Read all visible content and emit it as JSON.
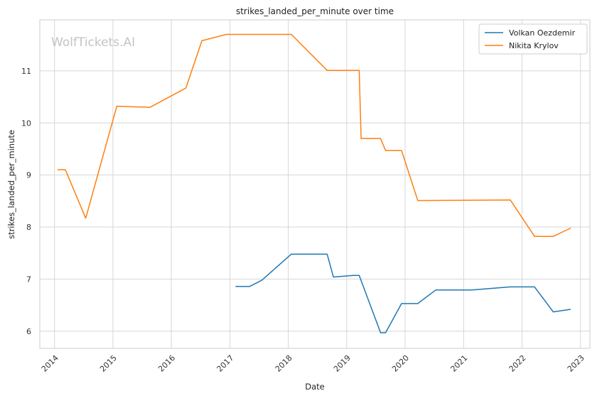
{
  "chart_data": {
    "type": "line",
    "title": "strikes_landed_per_minute over time",
    "xlabel": "Date",
    "ylabel": "strikes_landed_per_minute",
    "watermark": "WolfTickets.AI",
    "xlim": [
      "2013-10-01",
      "2023-03-01"
    ],
    "ylim": [
      5.67,
      11.98
    ],
    "x_ticks": [
      "2014",
      "2015",
      "2016",
      "2017",
      "2018",
      "2019",
      "2020",
      "2021",
      "2022",
      "2023"
    ],
    "y_ticks": [
      6,
      7,
      8,
      9,
      10,
      11
    ],
    "grid": true,
    "legend_position": "top-right",
    "series": [
      {
        "name": "Volkan Oezdemir",
        "color": "#1f77b4",
        "points": [
          [
            "2017-02-05",
            6.86
          ],
          [
            "2017-05-05",
            6.86
          ],
          [
            "2017-07-20",
            6.98
          ],
          [
            "2018-01-20",
            7.48
          ],
          [
            "2018-09-01",
            7.48
          ],
          [
            "2018-10-10",
            7.04
          ],
          [
            "2019-02-10",
            7.07
          ],
          [
            "2019-03-20",
            7.07
          ],
          [
            "2019-08-01",
            5.97
          ],
          [
            "2019-09-01",
            5.97
          ],
          [
            "2019-12-10",
            6.53
          ],
          [
            "2020-03-20",
            6.53
          ],
          [
            "2020-07-10",
            6.79
          ],
          [
            "2021-02-20",
            6.79
          ],
          [
            "2021-10-20",
            6.85
          ],
          [
            "2022-03-20",
            6.85
          ],
          [
            "2022-07-15",
            6.37
          ],
          [
            "2022-11-01",
            6.42
          ]
        ]
      },
      {
        "name": "Nikita Krylov",
        "color": "#ff7f0e",
        "points": [
          [
            "2014-01-20",
            9.1
          ],
          [
            "2014-03-10",
            9.1
          ],
          [
            "2014-07-15",
            8.17
          ],
          [
            "2015-01-25",
            10.32
          ],
          [
            "2015-08-20",
            10.3
          ],
          [
            "2016-04-01",
            10.67
          ],
          [
            "2016-07-10",
            11.58
          ],
          [
            "2016-12-10",
            11.7
          ],
          [
            "2018-01-20",
            11.7
          ],
          [
            "2018-09-01",
            11.01
          ],
          [
            "2019-03-20",
            11.01
          ],
          [
            "2019-04-01",
            9.7
          ],
          [
            "2019-08-01",
            9.7
          ],
          [
            "2019-09-01",
            9.47
          ],
          [
            "2019-12-10",
            9.47
          ],
          [
            "2020-03-20",
            8.51
          ],
          [
            "2021-10-20",
            8.52
          ],
          [
            "2022-03-20",
            7.82
          ],
          [
            "2022-07-15",
            7.82
          ],
          [
            "2022-11-01",
            7.98
          ]
        ]
      }
    ]
  }
}
